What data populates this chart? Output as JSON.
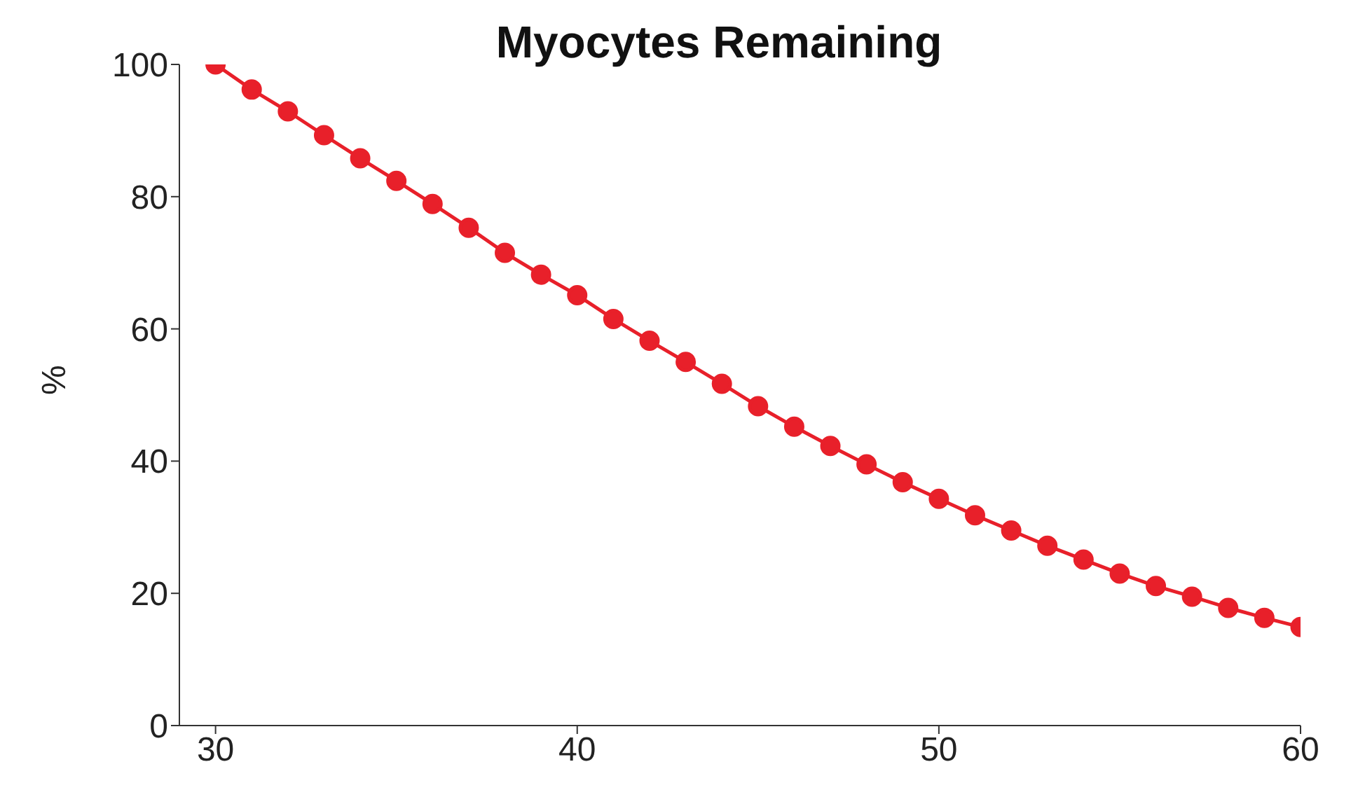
{
  "chart_data": {
    "type": "line",
    "title": "Myocytes Remaining",
    "ylabel": "%",
    "x": [
      30,
      31,
      32,
      33,
      34,
      35,
      36,
      37,
      38,
      39,
      40,
      41,
      42,
      43,
      44,
      45,
      46,
      47,
      48,
      49,
      50,
      51,
      52,
      53,
      54,
      55,
      56,
      57,
      58,
      59,
      60
    ],
    "series": [
      {
        "color": "#e8202a",
        "values": [
          100,
          96.2,
          92.9,
          89.3,
          85.8,
          82.4,
          78.9,
          75.3,
          71.5,
          68.2,
          65.1,
          61.5,
          58.2,
          55.0,
          51.7,
          48.3,
          45.2,
          42.3,
          39.5,
          36.8,
          34.3,
          31.8,
          29.5,
          27.2,
          25.1,
          23.0,
          21.1,
          19.5,
          17.8,
          16.3,
          14.9
        ]
      }
    ],
    "xlim": [
      29,
      60
    ],
    "xticks": [
      30,
      40,
      50,
      60
    ],
    "ylim": [
      0,
      100
    ],
    "yticks": [
      0,
      20,
      40,
      60,
      80,
      100
    ],
    "marker": "circle",
    "line_style": "solid"
  }
}
